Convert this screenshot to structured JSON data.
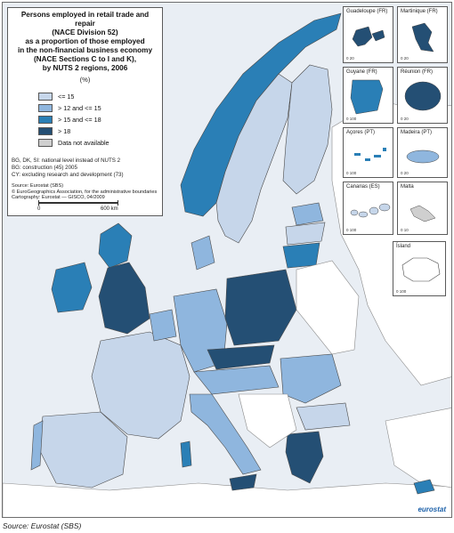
{
  "title": "Persons employed in retail trade and repair\n(NACE Division 52)\nas a proportion of those employed\nin the non-financial business economy\n(NACE Sections C to I and K),\nby NUTS 2 regions, 2006",
  "unit": "(%)",
  "legend": [
    {
      "label": "<= 15",
      "color": "#c6d6ea"
    },
    {
      "label": "> 12  and <= 15",
      "color": "#8fb6de"
    },
    {
      "label": "> 15 and <= 18",
      "color": "#2a7fb6"
    },
    {
      "label": "> 18",
      "color": "#244f74"
    },
    {
      "label": "Data not available",
      "color": "#cfcfcf"
    }
  ],
  "notes": [
    "BG, DK, SI: national level instead of NUTS 2",
    "BG: construction (45) 2005",
    "CY: excluding research and development (73)"
  ],
  "source_lines": [
    "Source: Eurostat (SBS)",
    "© EuroGeographics Association, for the administrative boundaries",
    "Cartography: Eurostat — GISCO, 04/2009"
  ],
  "scale": {
    "start": "0",
    "end": "600 km"
  },
  "insets": [
    {
      "name": "Guadeloupe (FR)",
      "scale": "0   20"
    },
    {
      "name": "Martinique (FR)",
      "scale": "0   20"
    },
    {
      "name": "Guyane (FR)",
      "scale": "0   100"
    },
    {
      "name": "Réunion (FR)",
      "scale": "0   20"
    },
    {
      "name": "Açores (PT)",
      "scale": "0   100"
    },
    {
      "name": "Madeira (PT)",
      "scale": "0   20"
    },
    {
      "name": "Canarias (ES)",
      "scale": "0   100"
    },
    {
      "name": "Malta",
      "scale": "0   10"
    }
  ],
  "iceland": {
    "name": "Ísland",
    "scale": "0   100"
  },
  "logo": "eurostat",
  "footer": "Source: Eurostat (SBS)",
  "colors": {
    "sea": "#e9eef4",
    "nonmember": "#ffffff",
    "border": "#4a4a4a"
  }
}
